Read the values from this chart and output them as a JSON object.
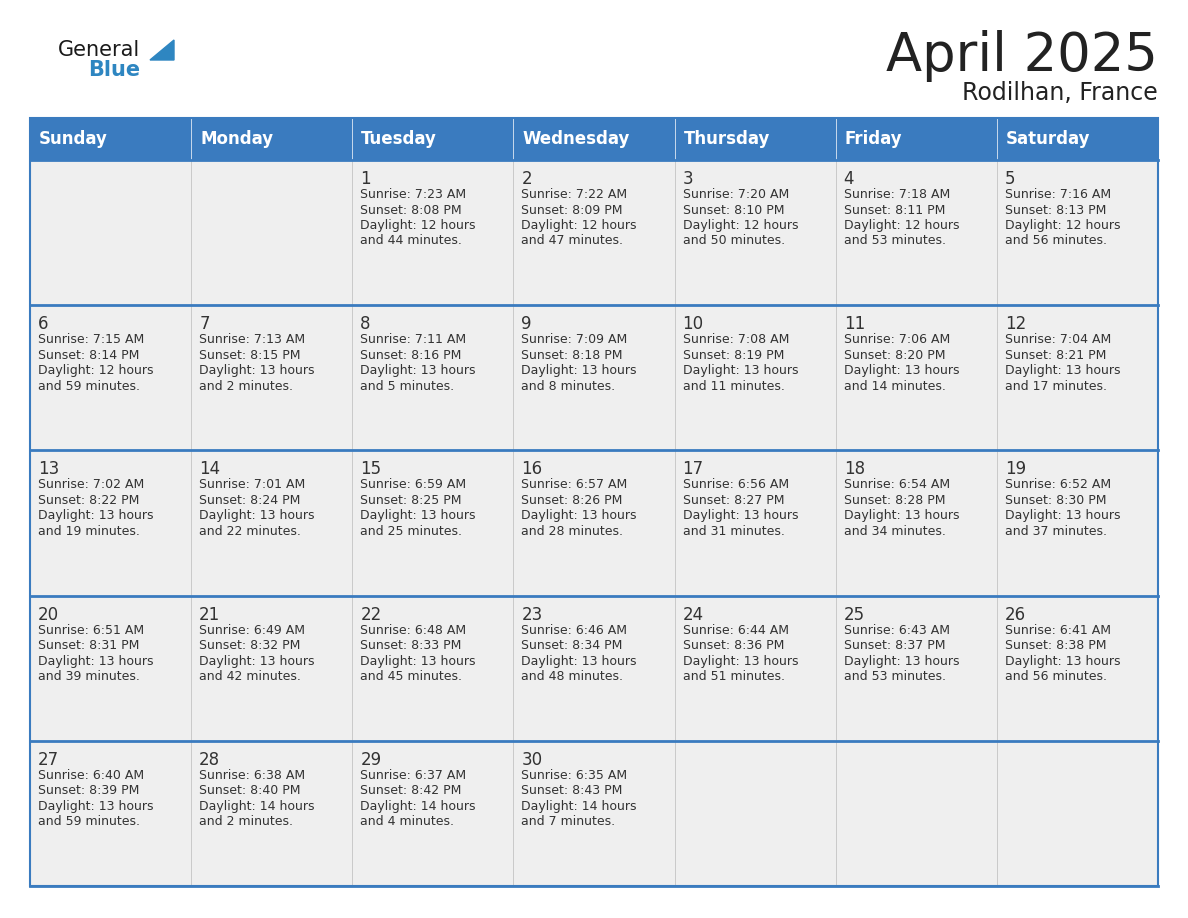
{
  "title": "April 2025",
  "subtitle": "Rodilhan, France",
  "days_of_week": [
    "Sunday",
    "Monday",
    "Tuesday",
    "Wednesday",
    "Thursday",
    "Friday",
    "Saturday"
  ],
  "header_bg_color": "#3a7bbf",
  "header_text_color": "#ffffff",
  "row_bg_color": "#efefef",
  "cell_border_color": "#bbbbbb",
  "row_divider_color": "#3a7bbf",
  "text_color": "#333333",
  "title_color": "#222222",
  "logo_general_color": "#1a1a1a",
  "logo_blue_color": "#2e86c1",
  "weeks": [
    [
      {
        "day": null,
        "info": ""
      },
      {
        "day": null,
        "info": ""
      },
      {
        "day": 1,
        "info": "Sunrise: 7:23 AM\nSunset: 8:08 PM\nDaylight: 12 hours\nand 44 minutes."
      },
      {
        "day": 2,
        "info": "Sunrise: 7:22 AM\nSunset: 8:09 PM\nDaylight: 12 hours\nand 47 minutes."
      },
      {
        "day": 3,
        "info": "Sunrise: 7:20 AM\nSunset: 8:10 PM\nDaylight: 12 hours\nand 50 minutes."
      },
      {
        "day": 4,
        "info": "Sunrise: 7:18 AM\nSunset: 8:11 PM\nDaylight: 12 hours\nand 53 minutes."
      },
      {
        "day": 5,
        "info": "Sunrise: 7:16 AM\nSunset: 8:13 PM\nDaylight: 12 hours\nand 56 minutes."
      }
    ],
    [
      {
        "day": 6,
        "info": "Sunrise: 7:15 AM\nSunset: 8:14 PM\nDaylight: 12 hours\nand 59 minutes."
      },
      {
        "day": 7,
        "info": "Sunrise: 7:13 AM\nSunset: 8:15 PM\nDaylight: 13 hours\nand 2 minutes."
      },
      {
        "day": 8,
        "info": "Sunrise: 7:11 AM\nSunset: 8:16 PM\nDaylight: 13 hours\nand 5 minutes."
      },
      {
        "day": 9,
        "info": "Sunrise: 7:09 AM\nSunset: 8:18 PM\nDaylight: 13 hours\nand 8 minutes."
      },
      {
        "day": 10,
        "info": "Sunrise: 7:08 AM\nSunset: 8:19 PM\nDaylight: 13 hours\nand 11 minutes."
      },
      {
        "day": 11,
        "info": "Sunrise: 7:06 AM\nSunset: 8:20 PM\nDaylight: 13 hours\nand 14 minutes."
      },
      {
        "day": 12,
        "info": "Sunrise: 7:04 AM\nSunset: 8:21 PM\nDaylight: 13 hours\nand 17 minutes."
      }
    ],
    [
      {
        "day": 13,
        "info": "Sunrise: 7:02 AM\nSunset: 8:22 PM\nDaylight: 13 hours\nand 19 minutes."
      },
      {
        "day": 14,
        "info": "Sunrise: 7:01 AM\nSunset: 8:24 PM\nDaylight: 13 hours\nand 22 minutes."
      },
      {
        "day": 15,
        "info": "Sunrise: 6:59 AM\nSunset: 8:25 PM\nDaylight: 13 hours\nand 25 minutes."
      },
      {
        "day": 16,
        "info": "Sunrise: 6:57 AM\nSunset: 8:26 PM\nDaylight: 13 hours\nand 28 minutes."
      },
      {
        "day": 17,
        "info": "Sunrise: 6:56 AM\nSunset: 8:27 PM\nDaylight: 13 hours\nand 31 minutes."
      },
      {
        "day": 18,
        "info": "Sunrise: 6:54 AM\nSunset: 8:28 PM\nDaylight: 13 hours\nand 34 minutes."
      },
      {
        "day": 19,
        "info": "Sunrise: 6:52 AM\nSunset: 8:30 PM\nDaylight: 13 hours\nand 37 minutes."
      }
    ],
    [
      {
        "day": 20,
        "info": "Sunrise: 6:51 AM\nSunset: 8:31 PM\nDaylight: 13 hours\nand 39 minutes."
      },
      {
        "day": 21,
        "info": "Sunrise: 6:49 AM\nSunset: 8:32 PM\nDaylight: 13 hours\nand 42 minutes."
      },
      {
        "day": 22,
        "info": "Sunrise: 6:48 AM\nSunset: 8:33 PM\nDaylight: 13 hours\nand 45 minutes."
      },
      {
        "day": 23,
        "info": "Sunrise: 6:46 AM\nSunset: 8:34 PM\nDaylight: 13 hours\nand 48 minutes."
      },
      {
        "day": 24,
        "info": "Sunrise: 6:44 AM\nSunset: 8:36 PM\nDaylight: 13 hours\nand 51 minutes."
      },
      {
        "day": 25,
        "info": "Sunrise: 6:43 AM\nSunset: 8:37 PM\nDaylight: 13 hours\nand 53 minutes."
      },
      {
        "day": 26,
        "info": "Sunrise: 6:41 AM\nSunset: 8:38 PM\nDaylight: 13 hours\nand 56 minutes."
      }
    ],
    [
      {
        "day": 27,
        "info": "Sunrise: 6:40 AM\nSunset: 8:39 PM\nDaylight: 13 hours\nand 59 minutes."
      },
      {
        "day": 28,
        "info": "Sunrise: 6:38 AM\nSunset: 8:40 PM\nDaylight: 14 hours\nand 2 minutes."
      },
      {
        "day": 29,
        "info": "Sunrise: 6:37 AM\nSunset: 8:42 PM\nDaylight: 14 hours\nand 4 minutes."
      },
      {
        "day": 30,
        "info": "Sunrise: 6:35 AM\nSunset: 8:43 PM\nDaylight: 14 hours\nand 7 minutes."
      },
      {
        "day": null,
        "info": ""
      },
      {
        "day": null,
        "info": ""
      },
      {
        "day": null,
        "info": ""
      }
    ]
  ]
}
